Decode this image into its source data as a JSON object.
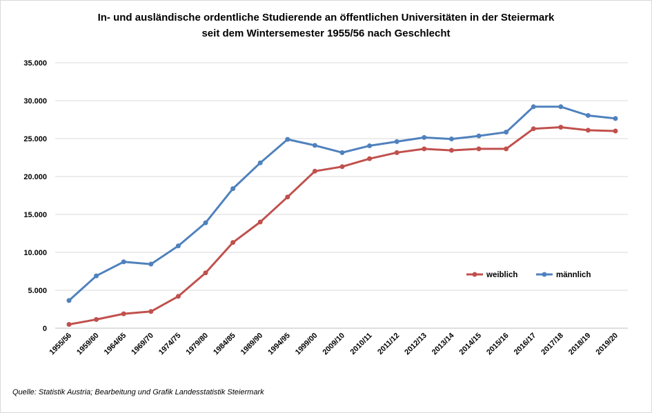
{
  "chart_data": {
    "type": "line",
    "title_line1": "In- und ausländische ordentliche Studierende an öffentlichen Universitäten in der Steiermark",
    "title_line2": "seit dem Wintersemester 1955/56 nach Geschlecht",
    "xlabel": "",
    "ylabel": "",
    "ylim": [
      0,
      35000
    ],
    "y_ticks": [
      "0",
      "5.000",
      "10.000",
      "15.000",
      "20.000",
      "25.000",
      "30.000",
      "35.000"
    ],
    "grid": "horizontal",
    "legend_position": "right",
    "categories": [
      "1955/56",
      "1959/60",
      "1964/65",
      "1969/70",
      "1974/75",
      "1979/80",
      "1984/85",
      "1989/90",
      "1994/95",
      "1999/00",
      "2009/10",
      "2010/11",
      "2011/12",
      "2012/13",
      "2013/14",
      "2014/15",
      "2015/16",
      "2016/17",
      "2017/18",
      "2018/19",
      "2019/20"
    ],
    "series": [
      {
        "name": "weiblich",
        "color": "#c0504d",
        "values": [
          500,
          1150,
          1900,
          2200,
          4200,
          7300,
          11300,
          14000,
          17300,
          20700,
          21300,
          22350,
          23150,
          23650,
          23450,
          23650,
          23650,
          26300,
          26500,
          26100,
          26000
        ]
      },
      {
        "name": "männlich",
        "color": "#4f81bd",
        "values": [
          3650,
          6900,
          8750,
          8450,
          10850,
          13900,
          18400,
          21800,
          24900,
          24100,
          23150,
          24050,
          24600,
          25150,
          24950,
          25350,
          25850,
          29200,
          29200,
          28050,
          27650
        ]
      }
    ]
  },
  "source": "Quelle: Statistik Austria; Bearbeitung und Grafik Landesstatistik  Steiermark"
}
